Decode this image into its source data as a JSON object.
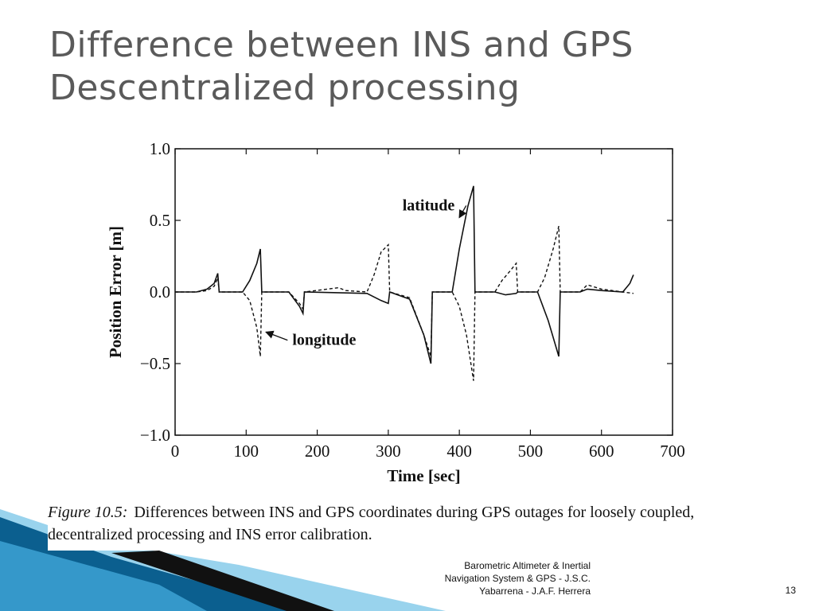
{
  "slide": {
    "title_line1": "Difference between INS and GPS",
    "title_line2": "Descentralized processing",
    "footer_line1": "Barometric Altimeter & Inertial",
    "footer_line2": "Navigation System & GPS - J.S.C.",
    "footer_line3": "Yabarrena - J.A.F. Herrera",
    "page_number": "13"
  },
  "figure": {
    "caption_label": "Figure 10.5:",
    "caption_text": "Differences between INS and GPS coordinates during GPS outages for loosely coupled, decentralized processing and INS error calibration."
  },
  "colors": {
    "title": "#5a5a5a",
    "decoration_dark": "#0b5f8f",
    "decoration_light": "#7fc8e8",
    "ink": "#111111"
  },
  "chart_data": {
    "type": "line",
    "xlabel": "Time [sec]",
    "ylabel": "Position Error [m]",
    "xlim": [
      0,
      700
    ],
    "ylim": [
      -1.0,
      1.0
    ],
    "x_ticks": [
      0,
      100,
      200,
      300,
      400,
      500,
      600,
      700
    ],
    "y_ticks": [
      1.0,
      0.5,
      0.0,
      -0.5,
      -1.0
    ],
    "x_tick_labels": [
      "0",
      "100",
      "200",
      "300",
      "400",
      "500",
      "600",
      "700"
    ],
    "y_tick_labels": [
      "1.0",
      "0.5",
      "0.0",
      "−0.5",
      "−1.0"
    ],
    "grid": false,
    "legend": "none (inline arrow labels)",
    "series": [
      {
        "name": "latitude",
        "style": "solid",
        "points": [
          [
            0,
            0
          ],
          [
            30,
            0
          ],
          [
            45,
            0.02
          ],
          [
            55,
            0.06
          ],
          [
            60,
            0.13
          ],
          [
            62,
            0
          ],
          [
            95,
            0
          ],
          [
            105,
            0.08
          ],
          [
            115,
            0.2
          ],
          [
            120,
            0.3
          ],
          [
            122,
            0
          ],
          [
            160,
            0
          ],
          [
            175,
            -0.1
          ],
          [
            180,
            -0.15
          ],
          [
            182,
            0
          ],
          [
            270,
            -0.01
          ],
          [
            290,
            -0.06
          ],
          [
            300,
            -0.08
          ],
          [
            302,
            0
          ],
          [
            330,
            -0.05
          ],
          [
            350,
            -0.3
          ],
          [
            360,
            -0.5
          ],
          [
            362,
            0
          ],
          [
            390,
            0
          ],
          [
            400,
            0.3
          ],
          [
            412,
            0.6
          ],
          [
            420,
            0.74
          ],
          [
            422,
            0
          ],
          [
            450,
            0
          ],
          [
            465,
            -0.02
          ],
          [
            480,
            -0.01
          ],
          [
            482,
            0
          ],
          [
            510,
            0
          ],
          [
            525,
            -0.2
          ],
          [
            540,
            -0.45
          ],
          [
            542,
            0
          ],
          [
            570,
            0
          ],
          [
            580,
            0.02
          ],
          [
            600,
            0.01
          ],
          [
            630,
            0
          ],
          [
            640,
            0.06
          ],
          [
            645,
            0.12
          ]
        ]
      },
      {
        "name": "longitude",
        "style": "dashed",
        "points": [
          [
            0,
            0
          ],
          [
            30,
            0
          ],
          [
            45,
            0.01
          ],
          [
            55,
            0.04
          ],
          [
            60,
            0.1
          ],
          [
            62,
            0
          ],
          [
            95,
            0
          ],
          [
            105,
            -0.06
          ],
          [
            115,
            -0.25
          ],
          [
            120,
            -0.45
          ],
          [
            122,
            0
          ],
          [
            160,
            0
          ],
          [
            175,
            -0.08
          ],
          [
            180,
            -0.12
          ],
          [
            182,
            0
          ],
          [
            230,
            0.03
          ],
          [
            240,
            0.01
          ],
          [
            270,
            0
          ],
          [
            280,
            0.12
          ],
          [
            290,
            0.28
          ],
          [
            300,
            0.33
          ],
          [
            302,
            0
          ],
          [
            330,
            -0.04
          ],
          [
            350,
            -0.3
          ],
          [
            360,
            -0.45
          ],
          [
            362,
            0
          ],
          [
            390,
            0
          ],
          [
            400,
            -0.1
          ],
          [
            410,
            -0.3
          ],
          [
            420,
            -0.62
          ],
          [
            422,
            0
          ],
          [
            450,
            0
          ],
          [
            460,
            0.08
          ],
          [
            472,
            0.15
          ],
          [
            480,
            0.2
          ],
          [
            482,
            0
          ],
          [
            510,
            0
          ],
          [
            520,
            0.1
          ],
          [
            532,
            0.3
          ],
          [
            540,
            0.46
          ],
          [
            542,
            0
          ],
          [
            570,
            0
          ],
          [
            580,
            0.05
          ],
          [
            600,
            0.02
          ],
          [
            630,
            0
          ],
          [
            645,
            -0.01
          ]
        ]
      }
    ],
    "annotations": [
      {
        "text": "latitude",
        "x": 320,
        "y": 0.57,
        "arrow_to": [
          400,
          0.52
        ]
      },
      {
        "text": "longitude",
        "x": 165,
        "y": -0.37,
        "arrow_to": [
          128,
          -0.28
        ]
      }
    ]
  }
}
